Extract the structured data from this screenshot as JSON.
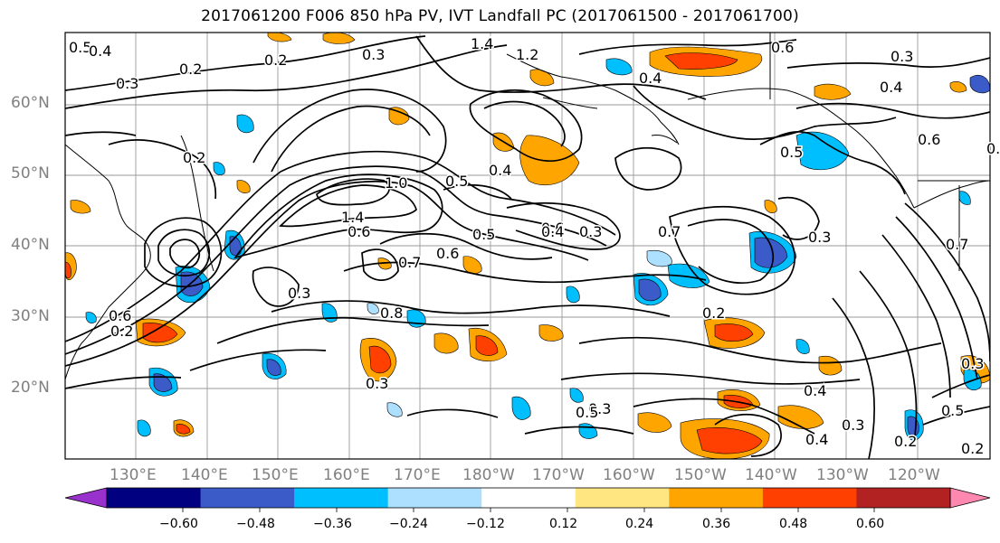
{
  "title": "2017061200 F006 850 hPa PV, IVT Landfall PC (2017061500 - 2017061700)",
  "lat_labels": [
    "60°N",
    "50°N",
    "40°N",
    "30°N",
    "20°N"
  ],
  "lon_labels": [
    "130°E",
    "140°E",
    "150°E",
    "160°E",
    "170°E",
    "180°W",
    "170°W",
    "160°W",
    "150°W",
    "140°W",
    "130°W",
    "120°W"
  ],
  "colorbar": {
    "tick_labels": [
      "−0.60",
      "−0.48",
      "−0.36",
      "−0.24",
      "−0.12",
      "0.12",
      "0.24",
      "0.36",
      "0.48",
      "0.60"
    ],
    "colors": [
      "#9932CC",
      "#000080",
      "#3A5BC8",
      "#00BFFF",
      "#ADDFFF",
      "#FFFFFF",
      "#FFE680",
      "#FFA500",
      "#FF4000",
      "#B22222",
      "#FF88B0"
    ]
  },
  "contour_labels": [
    "0.5",
    "0.4",
    "0.2",
    "0.3",
    "0.2",
    "0.3",
    "1.4",
    "1.2",
    "0.6",
    "0.4",
    "0.3",
    "0.4",
    "0.6",
    "0.2",
    "0.5",
    "1.0",
    "0.5",
    "0.4",
    "0.5",
    "0.3",
    "0.6",
    "0.7",
    "1.4",
    "0.6",
    "0.7",
    "0.6",
    "0.4",
    "0.3",
    "0.7",
    "0.8",
    "0.3",
    "0.3",
    "0.5",
    "0.4",
    "0.4",
    "0.3",
    "0.2",
    "0.3",
    "0.2",
    "0.6",
    "0.2",
    "0.2",
    "0.3",
    "0.2",
    "0.5"
  ],
  "colors": {
    "grid": "#9a9a9a",
    "contour": "#000000",
    "axis_text": "#808080"
  }
}
